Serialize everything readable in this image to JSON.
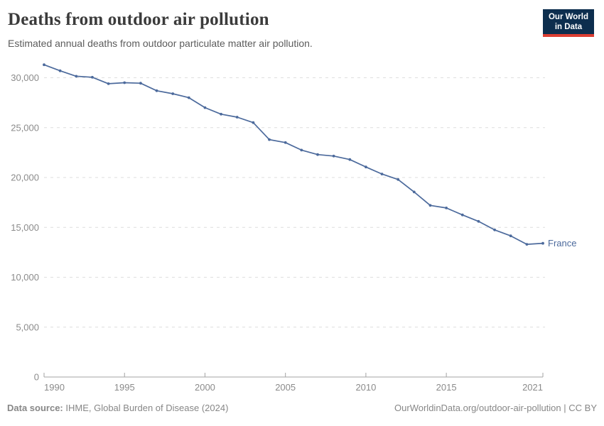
{
  "header": {
    "title": "Deaths from outdoor air pollution",
    "subtitle": "Estimated annual deaths from outdoor particulate matter air pollution.",
    "logo": {
      "line1": "Our World",
      "line2": "in Data",
      "bg_color": "#0d2e4e",
      "accent_color": "#dc3e32"
    }
  },
  "chart_data": {
    "type": "line",
    "title": "Deaths from outdoor air pollution",
    "xlabel": "",
    "ylabel": "",
    "xlim": [
      1990,
      2021
    ],
    "ylim": [
      0,
      31500
    ],
    "grid": "horizontal-dashed",
    "legend_position": "end-of-line-label",
    "x_ticks": [
      1990,
      1995,
      2000,
      2005,
      2010,
      2015,
      2021
    ],
    "y_ticks": [
      0,
      5000,
      10000,
      15000,
      20000,
      25000,
      30000
    ],
    "series": [
      {
        "name": "France",
        "color": "#4c6a9c",
        "x": [
          1990,
          1991,
          1992,
          1993,
          1994,
          1995,
          1996,
          1997,
          1998,
          1999,
          2000,
          2001,
          2002,
          2003,
          2004,
          2005,
          2006,
          2007,
          2008,
          2009,
          2010,
          2011,
          2012,
          2013,
          2014,
          2015,
          2016,
          2017,
          2018,
          2019,
          2020,
          2021
        ],
        "values": [
          31300,
          30700,
          30150,
          30050,
          29400,
          29500,
          29450,
          28700,
          28400,
          28000,
          27000,
          26350,
          26050,
          25500,
          23800,
          23500,
          22750,
          22300,
          22150,
          21800,
          21050,
          20350,
          19800,
          18550,
          17200,
          16950,
          16250,
          15600,
          14750,
          14150,
          13300,
          13400
        ]
      }
    ],
    "colors": {
      "grid": "#dedede",
      "axis": "#a3a3a3",
      "tick_label": "#8b8b8b"
    }
  },
  "footer": {
    "source_label": "Data source:",
    "source_value": " IHME, Global Burden of Disease (2024)",
    "link": "OurWorldinData.org/outdoor-air-pollution",
    "separator": " | ",
    "license": "CC BY"
  }
}
